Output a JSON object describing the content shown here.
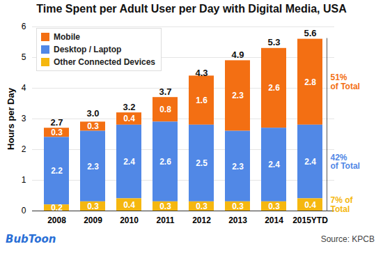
{
  "chart_data": {
    "type": "bar",
    "stacked": true,
    "title": "Time Spent per Adult User per Day with Digital Media, USA",
    "y_label": "Hours per Day",
    "source": "Source: KPCB",
    "logo": "BubToon",
    "categories": [
      "2008",
      "2009",
      "2010",
      "2011",
      "2012",
      "2013",
      "2014",
      "2015YTD"
    ],
    "series": [
      {
        "name": "Mobile",
        "color": "#f36f13",
        "values": [
          0.3,
          0.3,
          0.4,
          0.8,
          1.6,
          2.3,
          2.6,
          2.8
        ],
        "annotation": "51%\nof Total"
      },
      {
        "name": "Desktop / Laptop",
        "color": "#5188e6",
        "values": [
          2.2,
          2.3,
          2.4,
          2.6,
          2.5,
          2.3,
          2.4,
          2.4
        ],
        "annotation": "42%\nof Total"
      },
      {
        "name": "Other Connected Devices",
        "color": "#f5b70f",
        "values": [
          0.2,
          0.3,
          0.4,
          0.3,
          0.3,
          0.3,
          0.3,
          0.4
        ],
        "annotation": "7% of\nTotal"
      }
    ],
    "totals": {
      "values": [
        2.7,
        3.0,
        3.2,
        3.7,
        4.3,
        4.9,
        5.3,
        5.6
      ],
      "value_labels": [
        "2.7",
        "3.0",
        "3.2",
        "3.7",
        "4.3",
        "4.9",
        "5.3",
        "5.6"
      ]
    },
    "ylim": [
      0,
      6
    ],
    "yticks": [
      0,
      1,
      2,
      3,
      4,
      5,
      6
    ],
    "grid": true,
    "data_labels": true,
    "legend": "top-left"
  }
}
